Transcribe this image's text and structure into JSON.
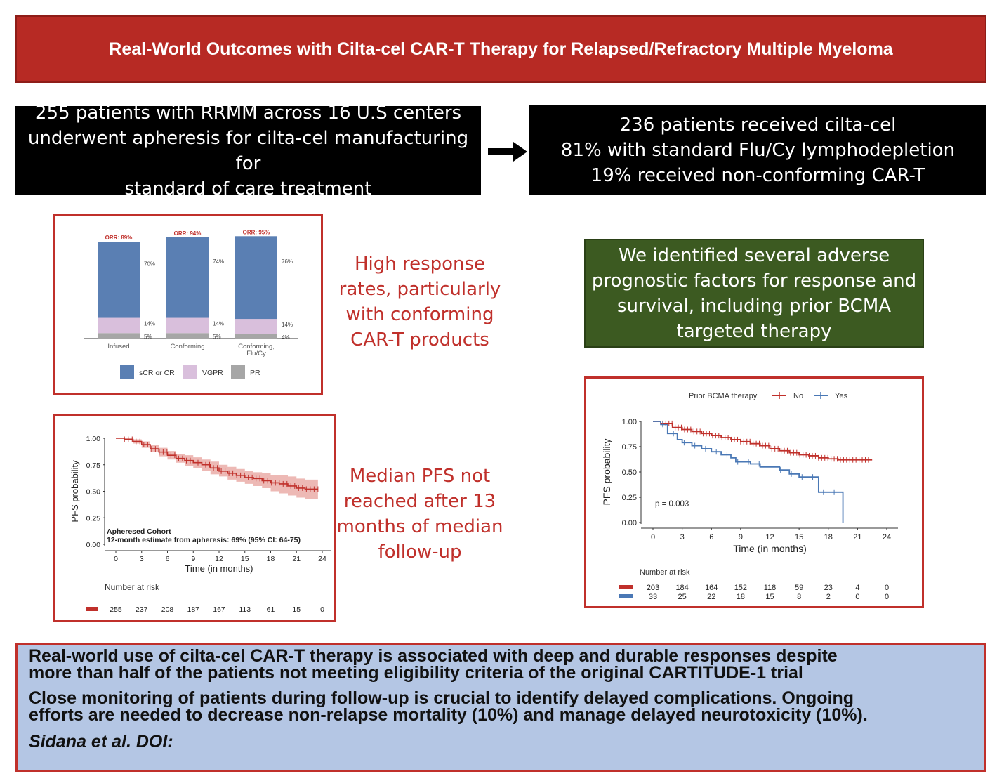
{
  "title": "Real-World Outcomes with Cilta-cel CAR-T Therapy for Relapsed/Refractory Multiple Myeloma",
  "box_left": {
    "lines": [
      "255 patients with RRMM across 16 U.S centers",
      "underwent apheresis for cilta-cel manufacturing for",
      "standard of care treatment"
    ]
  },
  "box_right": {
    "lines": [
      "236 patients received cilta-cel",
      "81% with standard Flu/Cy lymphodepletion",
      "19% received non-conforming CAR-T"
    ]
  },
  "response_text": {
    "lines": [
      "High response",
      "rates, particularly",
      "with conforming",
      "CAR-T products"
    ]
  },
  "pfs_text": {
    "lines": [
      "Median PFS not",
      "reached after 13",
      "months of median",
      "follow-up"
    ]
  },
  "green_box": {
    "lines": [
      "We identified several adverse",
      "prognostic factors for response and",
      "survival, including prior BCMA",
      "targeted therapy"
    ]
  },
  "summary": {
    "p1_l1": "Real-world use of cilta-cel CAR-T therapy is associated with deep and durable responses despite",
    "p1_l2": "more than half of the patients not meeting eligibility criteria of the original CARTITUDE-1 trial",
    "p2_l1": "Close monitoring of patients during follow-up is crucial to identify delayed complications. Ongoing",
    "p2_l2": "efforts are needed to decrease non-relapse mortality (10%) and manage delayed neurotoxicity (10%).",
    "citation": "Sidana et al. DOI:"
  },
  "colors": {
    "banner_red": "#b72a24",
    "accent_red": "#c0302b",
    "green": "#3c5a21",
    "summary_blue": "#b4c6e4",
    "scr": "#5a7fb3",
    "vgpr": "#d9bfdc",
    "pr": "#a6a6a6",
    "km_no": "#c0302b",
    "km_yes": "#4a78b5"
  },
  "chart_data": [
    {
      "type": "bar",
      "stacked": true,
      "categories": [
        "Infused",
        "Conforming",
        "Conforming,\nFlu/Cy"
      ],
      "category_lines": [
        [
          "Infused"
        ],
        [
          "Conforming"
        ],
        [
          "Conforming,",
          "Flu/Cy"
        ]
      ],
      "series": [
        {
          "name": "PR",
          "values": [
            5,
            5,
            4
          ],
          "labels": [
            "5%",
            "5%",
            "4%"
          ]
        },
        {
          "name": "VGPR",
          "values": [
            14,
            14,
            14
          ],
          "labels": [
            "14%",
            "14%",
            "14%"
          ]
        },
        {
          "name": "sCR or CR",
          "values": [
            70,
            74,
            76
          ],
          "labels": [
            "70%",
            "74%",
            "76%"
          ]
        }
      ],
      "annotations": [
        "ORR: 89%",
        "ORR: 94%",
        "ORR: 95%"
      ],
      "ylim": [
        0,
        100
      ],
      "legend": {
        "position": "bottom",
        "labels": [
          "sCR or CR",
          "VGPR",
          "PR"
        ]
      }
    },
    {
      "type": "line",
      "xlabel": "Time (in months)",
      "ylabel": "PFS probability",
      "xticks": [
        0,
        3,
        6,
        9,
        12,
        15,
        18,
        21,
        24
      ],
      "yticks": [
        "0.00",
        "0.25",
        "0.50",
        "0.75",
        "1.00"
      ],
      "xlim": [
        0,
        24
      ],
      "ylim": [
        0,
        1
      ],
      "series": [
        {
          "name": "Apheresed Cohort",
          "x": [
            0,
            1,
            2,
            3,
            4,
            5,
            6,
            7,
            8,
            9,
            10,
            11,
            12,
            13,
            14,
            15,
            16,
            17,
            18,
            19,
            20,
            21,
            22,
            23.5
          ],
          "y": [
            1.0,
            0.99,
            0.97,
            0.94,
            0.9,
            0.87,
            0.84,
            0.81,
            0.79,
            0.77,
            0.75,
            0.72,
            0.69,
            0.67,
            0.65,
            0.63,
            0.62,
            0.6,
            0.58,
            0.57,
            0.55,
            0.53,
            0.52,
            0.52
          ],
          "ci_low": [
            1.0,
            0.98,
            0.95,
            0.91,
            0.87,
            0.83,
            0.8,
            0.77,
            0.74,
            0.72,
            0.69,
            0.66,
            0.64,
            0.61,
            0.59,
            0.57,
            0.55,
            0.53,
            0.5,
            0.48,
            0.46,
            0.44,
            0.43,
            0.43
          ],
          "ci_high": [
            1.0,
            1.0,
            0.99,
            0.97,
            0.94,
            0.91,
            0.88,
            0.85,
            0.84,
            0.82,
            0.8,
            0.78,
            0.75,
            0.73,
            0.71,
            0.69,
            0.68,
            0.67,
            0.65,
            0.65,
            0.64,
            0.62,
            0.61,
            0.61
          ]
        }
      ],
      "annotation_l1": "Apheresed Cohort",
      "annotation_l2": "12-month estimate from apheresis: 69% (95% CI: 64-75)",
      "risk_table": {
        "title": "Number at risk",
        "values": [
          "255",
          "237",
          "208",
          "187",
          "167",
          "113",
          "61",
          "15",
          "0"
        ]
      }
    },
    {
      "type": "line",
      "legend_title": "Prior BCMA therapy",
      "xlabel": "Time (in months)",
      "ylabel": "PFS probability",
      "xticks": [
        0,
        3,
        6,
        9,
        12,
        15,
        18,
        21,
        24
      ],
      "yticks": [
        "0.00",
        "0.25",
        "0.50",
        "0.75",
        "1.00"
      ],
      "xlim": [
        0,
        24
      ],
      "ylim": [
        0,
        1
      ],
      "p_value": "p = 0.003",
      "series": [
        {
          "name": "No",
          "x": [
            0,
            0.8,
            2,
            3,
            4,
            5,
            6,
            7,
            8,
            9,
            10,
            11,
            12,
            13,
            14,
            15,
            16,
            17,
            18,
            19,
            20,
            21,
            22.5
          ],
          "y": [
            1.0,
            0.98,
            0.94,
            0.92,
            0.9,
            0.88,
            0.86,
            0.84,
            0.82,
            0.8,
            0.78,
            0.76,
            0.73,
            0.71,
            0.69,
            0.67,
            0.66,
            0.64,
            0.63,
            0.62,
            0.62,
            0.62,
            0.62
          ]
        },
        {
          "name": "Yes",
          "x": [
            0,
            0.8,
            1.5,
            2.5,
            3,
            4,
            5,
            6,
            7,
            8,
            8.5,
            10,
            11,
            12,
            13,
            14,
            15,
            16,
            16.8,
            17,
            18,
            19,
            19.4,
            19.5
          ],
          "y": [
            1.0,
            0.97,
            0.88,
            0.82,
            0.79,
            0.76,
            0.73,
            0.7,
            0.67,
            0.64,
            0.6,
            0.58,
            0.55,
            0.55,
            0.52,
            0.48,
            0.45,
            0.45,
            0.45,
            0.3,
            0.3,
            0.3,
            0.3,
            0.0
          ]
        }
      ],
      "risk_table": {
        "title": "Number at risk",
        "rows": [
          {
            "name": "No",
            "values": [
              "203",
              "184",
              "164",
              "152",
              "118",
              "59",
              "23",
              "4",
              "0"
            ]
          },
          {
            "name": "Yes",
            "values": [
              "33",
              "25",
              "22",
              "18",
              "15",
              "8",
              "2",
              "0",
              "0"
            ]
          }
        ]
      }
    }
  ]
}
